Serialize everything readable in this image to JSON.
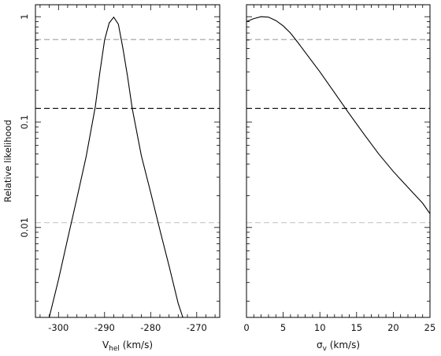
{
  "colors": {
    "background": "#ffffff",
    "axis": "#000000",
    "curve": "#000000",
    "line_light": "#a0a0a0",
    "line_dark": "#000000",
    "line_pale": "#c8c8c8"
  },
  "chart_data": [
    {
      "type": "line",
      "xlabel_main": "V",
      "xlabel_sub": "hel",
      "xlabel_unit": "(km/s)",
      "ylabel": "Relative likelihood",
      "xlim": [
        -305,
        -265
      ],
      "ylim": [
        0.0014,
        1.3
      ],
      "yscale": "log",
      "xticks": [
        -300,
        -290,
        -280,
        -270
      ],
      "xticklabels": [
        "-300",
        "-290",
        "-280",
        "-270"
      ],
      "yticks": [
        0.01,
        0.1,
        1
      ],
      "yticklabels": [
        "0.01",
        "0.1",
        "1"
      ],
      "hlines": [
        {
          "y": 0.607,
          "style": "dashed",
          "color": "#a0a0a0"
        },
        {
          "y": 0.135,
          "style": "dashed",
          "color": "#000000"
        },
        {
          "y": 0.0111,
          "style": "dashed",
          "color": "#c8c8c8"
        }
      ],
      "series": [
        {
          "x": [
            -302.0,
            -300.0,
            -298.0,
            -296.0,
            -294.0,
            -292.0,
            -291.0,
            -290.0,
            -289.0,
            -288.0,
            -287.0,
            -286.0,
            -285.0,
            -284.0,
            -282.0,
            -280.0,
            -278.0,
            -276.0,
            -274.0,
            -273.0
          ],
          "y": [
            0.0014,
            0.0032,
            0.0078,
            0.019,
            0.047,
            0.14,
            0.3,
            0.6,
            0.87,
            0.99,
            0.85,
            0.5,
            0.27,
            0.135,
            0.048,
            0.0215,
            0.0095,
            0.0043,
            0.0019,
            0.0014
          ]
        }
      ]
    },
    {
      "type": "line",
      "xlabel_main": "σ",
      "xlabel_sub": "v",
      "xlabel_unit": "(km/s)",
      "ylabel": "",
      "xlim": [
        0,
        25
      ],
      "ylim": [
        0.0014,
        1.3
      ],
      "yscale": "log",
      "xticks": [
        0,
        5,
        10,
        15,
        20,
        25
      ],
      "xticklabels": [
        "0",
        "5",
        "10",
        "15",
        "20",
        "25"
      ],
      "yticks": [
        0.01,
        0.1,
        1
      ],
      "yticklabels": [],
      "hlines": [
        {
          "y": 0.607,
          "style": "dashed",
          "color": "#a0a0a0"
        },
        {
          "y": 0.135,
          "style": "dashed",
          "color": "#000000"
        },
        {
          "y": 0.0111,
          "style": "dashed",
          "color": "#c8c8c8"
        }
      ],
      "series": [
        {
          "x": [
            0,
            1,
            2,
            3,
            4,
            5,
            6,
            7,
            8,
            10,
            12,
            14,
            16,
            18,
            20,
            22,
            24,
            25
          ],
          "y": [
            0.9,
            0.96,
            1.0,
            0.99,
            0.92,
            0.82,
            0.7,
            0.57,
            0.46,
            0.3,
            0.19,
            0.12,
            0.077,
            0.05,
            0.034,
            0.024,
            0.017,
            0.0135
          ]
        }
      ]
    }
  ]
}
